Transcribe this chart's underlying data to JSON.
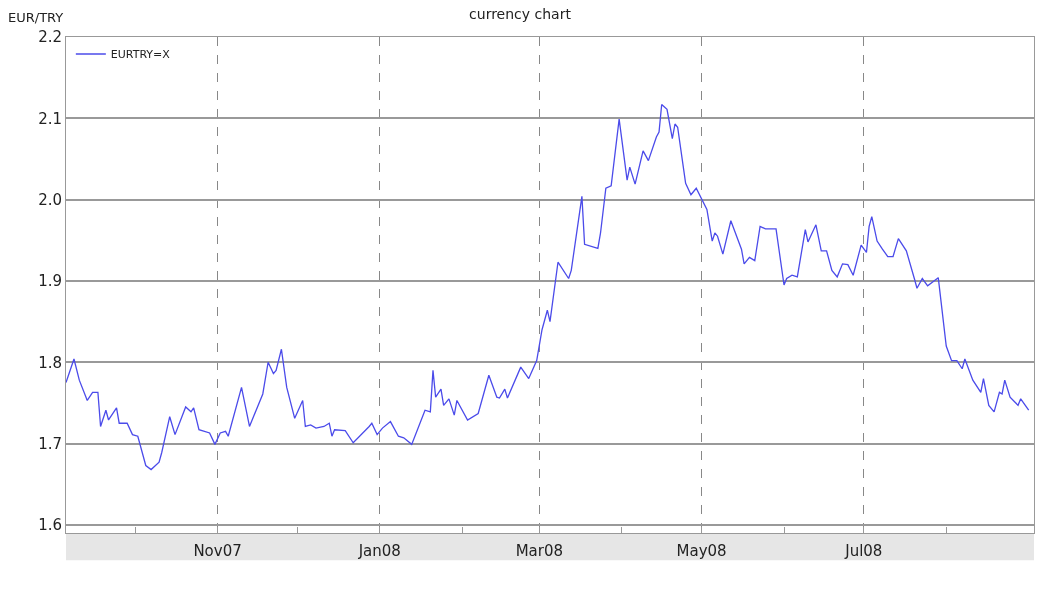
{
  "chart_data": {
    "type": "line",
    "title": "currency chart",
    "ylabel": "EUR/TRY",
    "x": [
      "2007-09-05",
      "2007-09-08",
      "2007-09-10",
      "2007-09-13",
      "2007-09-15",
      "2007-09-17",
      "2007-09-18",
      "2007-09-20",
      "2007-09-21",
      "2007-09-24",
      "2007-09-25",
      "2007-09-28",
      "2007-09-30",
      "2007-10-02",
      "2007-10-05",
      "2007-10-07",
      "2007-10-10",
      "2007-10-11",
      "2007-10-14",
      "2007-10-16",
      "2007-10-20",
      "2007-10-22",
      "2007-10-23",
      "2007-10-25",
      "2007-10-29",
      "2007-10-31",
      "2007-11-02",
      "2007-11-04",
      "2007-11-05",
      "2007-11-10",
      "2007-11-13",
      "2007-11-18",
      "2007-11-20",
      "2007-11-22",
      "2007-11-23",
      "2007-11-25",
      "2007-11-27",
      "2007-11-30",
      "2007-12-03",
      "2007-12-04",
      "2007-12-06",
      "2007-12-08",
      "2007-12-11",
      "2007-12-13",
      "2007-12-14",
      "2007-12-15",
      "2007-12-19",
      "2007-12-22",
      "2007-12-28",
      "2007-12-29",
      "2007-12-31",
      "2008-01-02",
      "2008-01-05",
      "2008-01-08",
      "2008-01-10",
      "2008-01-13",
      "2008-01-18",
      "2008-01-20",
      "2008-01-21",
      "2008-01-22",
      "2008-01-24",
      "2008-01-25",
      "2008-01-27",
      "2008-01-29",
      "2008-01-30",
      "2008-02-03",
      "2008-02-07",
      "2008-02-11",
      "2008-02-14",
      "2008-02-15",
      "2008-02-17",
      "2008-02-18",
      "2008-02-23",
      "2008-02-26",
      "2008-02-29",
      "2008-03-02",
      "2008-03-04",
      "2008-03-05",
      "2008-03-08",
      "2008-03-12",
      "2008-03-13",
      "2008-03-17",
      "2008-03-18",
      "2008-03-23",
      "2008-03-24",
      "2008-03-26",
      "2008-03-28",
      "2008-03-31",
      "2008-04-03",
      "2008-04-04",
      "2008-04-06",
      "2008-04-09",
      "2008-04-11",
      "2008-04-14",
      "2008-04-15",
      "2008-04-16",
      "2008-04-18",
      "2008-04-20",
      "2008-04-21",
      "2008-04-22",
      "2008-04-25",
      "2008-04-27",
      "2008-04-29",
      "2008-05-03",
      "2008-05-05",
      "2008-05-06",
      "2008-05-07",
      "2008-05-09",
      "2008-05-12",
      "2008-05-16",
      "2008-05-17",
      "2008-05-19",
      "2008-05-21",
      "2008-05-23",
      "2008-05-25",
      "2008-05-29",
      "2008-06-01",
      "2008-06-02",
      "2008-06-04",
      "2008-06-06",
      "2008-06-09",
      "2008-06-10",
      "2008-06-13",
      "2008-06-15",
      "2008-06-17",
      "2008-06-19",
      "2008-06-21",
      "2008-06-23",
      "2008-06-25",
      "2008-06-27",
      "2008-06-30",
      "2008-07-02",
      "2008-07-03",
      "2008-07-04",
      "2008-07-06",
      "2008-07-08",
      "2008-07-10",
      "2008-07-12",
      "2008-07-14",
      "2008-07-17",
      "2008-07-20",
      "2008-07-21",
      "2008-07-23",
      "2008-07-25",
      "2008-07-29",
      "2008-08-01",
      "2008-08-03",
      "2008-08-05",
      "2008-08-07",
      "2008-08-08",
      "2008-08-11",
      "2008-08-14",
      "2008-08-15",
      "2008-08-17",
      "2008-08-19",
      "2008-08-21",
      "2008-08-22",
      "2008-08-23",
      "2008-08-25",
      "2008-08-28",
      "2008-08-29",
      "2008-09-01"
    ],
    "series": [
      {
        "name": "EURTRY=X",
        "color": "#4b4bea",
        "values": [
          1.775,
          1.804,
          1.778,
          1.753,
          1.763,
          1.763,
          1.721,
          1.741,
          1.729,
          1.744,
          1.725,
          1.725,
          1.711,
          1.709,
          1.673,
          1.668,
          1.677,
          1.689,
          1.733,
          1.711,
          1.745,
          1.739,
          1.744,
          1.717,
          1.713,
          1.699,
          1.713,
          1.715,
          1.709,
          1.769,
          1.721,
          1.761,
          1.8,
          1.786,
          1.79,
          1.816,
          1.769,
          1.731,
          1.753,
          1.721,
          1.723,
          1.719,
          1.721,
          1.725,
          1.709,
          1.717,
          1.716,
          1.701,
          1.721,
          1.725,
          1.711,
          1.719,
          1.727,
          1.709,
          1.707,
          1.699,
          1.741,
          1.739,
          1.79,
          1.757,
          1.767,
          1.747,
          1.755,
          1.735,
          1.753,
          1.729,
          1.737,
          1.784,
          1.757,
          1.756,
          1.767,
          1.756,
          1.794,
          1.78,
          1.802,
          1.84,
          1.864,
          1.85,
          1.923,
          1.903,
          1.913,
          2.004,
          1.945,
          1.94,
          1.959,
          2.014,
          2.017,
          2.099,
          2.024,
          2.04,
          2.019,
          2.06,
          2.048,
          2.077,
          2.083,
          2.117,
          2.111,
          2.075,
          2.093,
          2.089,
          2.02,
          2.006,
          2.014,
          1.988,
          1.949,
          1.959,
          1.955,
          1.933,
          1.974,
          1.939,
          1.921,
          1.929,
          1.925,
          1.967,
          1.964,
          1.964,
          1.895,
          1.903,
          1.907,
          1.905,
          1.963,
          1.948,
          1.969,
          1.937,
          1.937,
          1.913,
          1.905,
          1.921,
          1.92,
          1.907,
          1.944,
          1.935,
          1.967,
          1.979,
          1.949,
          1.939,
          1.93,
          1.93,
          1.952,
          1.937,
          1.903,
          1.891,
          1.903,
          1.894,
          1.904,
          1.82,
          1.802,
          1.802,
          1.792,
          1.804,
          1.778,
          1.763,
          1.78,
          1.747,
          1.739,
          1.763,
          1.761,
          1.778,
          1.757,
          1.747,
          1.755,
          1.741
        ]
      }
    ],
    "xlim": [
      "2007-09-05",
      "2008-09-03"
    ],
    "xticks": [
      {
        "value": "2007-10-01",
        "label": null
      },
      {
        "value": "2007-11-01",
        "label": "Nov07"
      },
      {
        "value": "2007-12-01",
        "label": null
      },
      {
        "value": "2008-01-01",
        "label": "Jan08"
      },
      {
        "value": "2008-02-01",
        "label": null
      },
      {
        "value": "2008-03-01",
        "label": "Mar08"
      },
      {
        "value": "2008-04-01",
        "label": null
      },
      {
        "value": "2008-05-01",
        "label": "May08"
      },
      {
        "value": "2008-06-01",
        "label": null
      },
      {
        "value": "2008-07-01",
        "label": "Jul08"
      },
      {
        "value": "2008-08-01",
        "label": null
      }
    ],
    "ylim": [
      1.59,
      2.2
    ],
    "yticks": [
      1.6,
      1.7,
      1.8,
      1.9,
      {
        "value": 2,
        "label": "2.0"
      },
      2.1,
      2.2
    ],
    "grid": true,
    "legend": "top left",
    "marker": "none",
    "line_style": "solid"
  }
}
